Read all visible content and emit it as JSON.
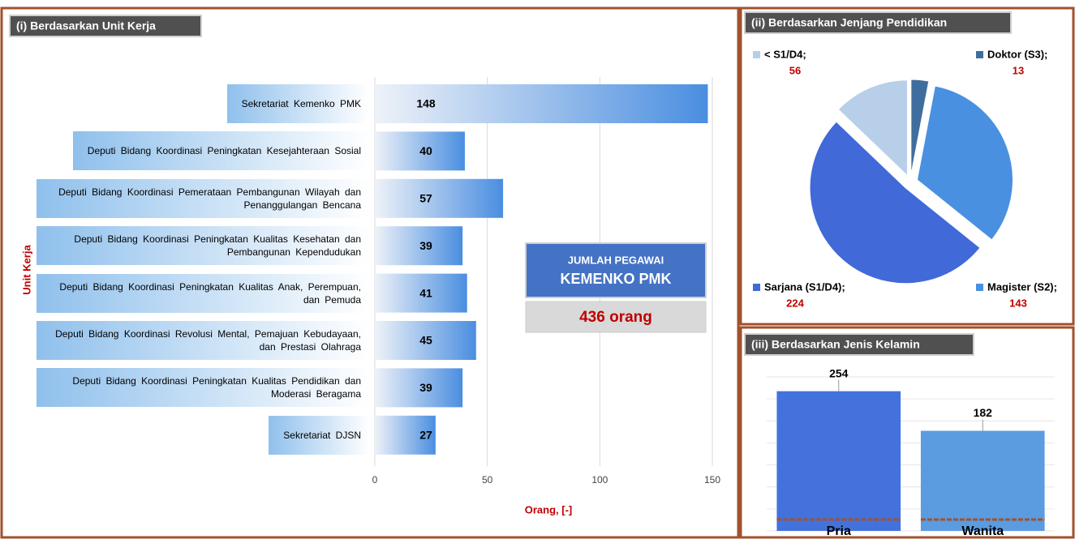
{
  "chart_data": [
    {
      "type": "hbar",
      "title": "(i) Berdasarkan Unit Kerja",
      "y_label": "Unit Kerja",
      "x_label": "Orang, [-]",
      "categories": [
        "Sekretariat Kemenko PMK",
        "Deputi Bidang Koordinasi Peningkatan Kesejahteraan Sosial",
        "Deputi Bidang Koordinasi Pemerataan Pembangunan Wilayah dan Penanggulangan Bencana",
        "Deputi Bidang Koordinasi Peningkatan Kualitas Kesehatan dan Pembangunan Kependudukan",
        "Deputi Bidang Koordinasi Peningkatan Kualitas Anak, Perempuan, dan Pemuda",
        "Deputi Bidang Koordinasi Revolusi Mental, Pemajuan Kebudayaan, dan Prestasi Olahraga",
        "Deputi Bidang Koordinasi Peningkatan Kualitas Pendidikan dan Moderasi Beragama",
        "Sekretariat DJSN"
      ],
      "values": [
        148,
        40,
        57,
        39,
        41,
        45,
        39,
        27
      ],
      "color": "#4a8ee0",
      "xlim": [
        0,
        150
      ],
      "xticks": [
        0,
        50,
        100,
        150
      ],
      "grid": true,
      "annotations": [
        "JUMLAH PEGAWAI",
        "KEMENKO PMK",
        "436 orang"
      ]
    },
    {
      "type": "pie",
      "title": "(ii) Berdasarkan Jenjang Pendidikan",
      "categories": [
        "Doktor (S3);",
        "Magister (S2);",
        "Sarjana (S1/D4);",
        "< S1/D4;"
      ],
      "values": [
        13,
        143,
        224,
        56
      ],
      "colors": [
        "#3f6e9e",
        "#4a90e0",
        "#4169d8",
        "#b8cfea"
      ]
    },
    {
      "type": "bar",
      "title": "(iii) Berdasarkan Jenis Kelamin",
      "categories": [
        "Pria",
        "Wanita"
      ],
      "values": [
        254,
        182
      ],
      "colors": [
        "#4472dc",
        "#5b9be0"
      ],
      "ylim": [
        0,
        280
      ],
      "yticks": [
        0,
        40,
        80,
        120,
        160,
        200,
        240,
        280
      ],
      "grid": true
    }
  ]
}
